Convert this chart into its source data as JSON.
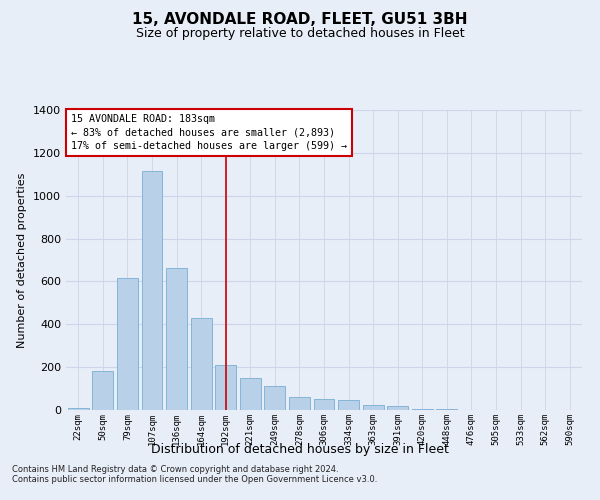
{
  "title": "15, AVONDALE ROAD, FLEET, GU51 3BH",
  "subtitle": "Size of property relative to detached houses in Fleet",
  "xlabel": "Distribution of detached houses by size in Fleet",
  "ylabel": "Number of detached properties",
  "bar_color": "#b8d0e8",
  "bar_edge_color": "#7aadd4",
  "categories": [
    "22sqm",
    "50sqm",
    "79sqm",
    "107sqm",
    "136sqm",
    "164sqm",
    "192sqm",
    "221sqm",
    "249sqm",
    "278sqm",
    "306sqm",
    "334sqm",
    "363sqm",
    "391sqm",
    "420sqm",
    "448sqm",
    "476sqm",
    "505sqm",
    "533sqm",
    "562sqm",
    "590sqm"
  ],
  "values": [
    10,
    180,
    615,
    1115,
    665,
    430,
    210,
    150,
    110,
    60,
    50,
    45,
    25,
    20,
    5,
    5,
    2,
    2,
    1,
    1,
    1
  ],
  "ylim": [
    0,
    1400
  ],
  "yticks": [
    0,
    200,
    400,
    600,
    800,
    1000,
    1200,
    1400
  ],
  "grid_color": "#ccd6e8",
  "background_color": "#e8eef8",
  "vline_x": 6.0,
  "vline_color": "#cc0000",
  "annotation_title": "15 AVONDALE ROAD: 183sqm",
  "annotation_line1": "← 83% of detached houses are smaller (2,893)",
  "annotation_line2": "17% of semi-detached houses are larger (599) →",
  "annotation_box_color": "#ffffff",
  "annotation_border_color": "#cc0000",
  "footer1": "Contains HM Land Registry data © Crown copyright and database right 2024.",
  "footer2": "Contains public sector information licensed under the Open Government Licence v3.0."
}
